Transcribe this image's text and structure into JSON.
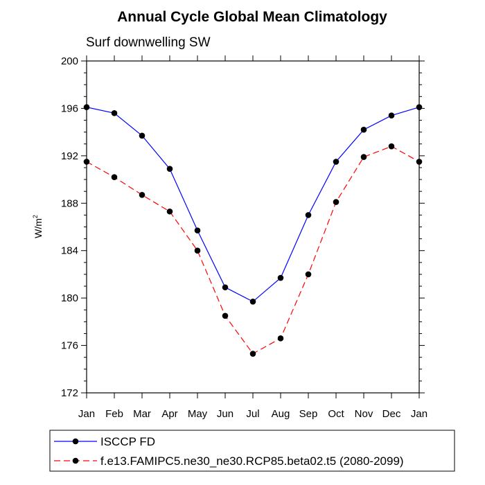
{
  "chart_data": {
    "type": "line",
    "title": "Annual Cycle Global Mean Climatology",
    "subtitle": "Surf downwelling SW",
    "ylabel_base": "W/m",
    "ylabel_sup": "2",
    "categories": [
      "Jan",
      "Feb",
      "Mar",
      "Apr",
      "May",
      "Jun",
      "Jul",
      "Aug",
      "Sep",
      "Oct",
      "Nov",
      "Dec",
      "Jan"
    ],
    "ylim": [
      172,
      200
    ],
    "yticks": [
      172,
      176,
      180,
      184,
      188,
      192,
      196,
      200
    ],
    "grid": false,
    "legend_position": "bottom",
    "series": [
      {
        "name": "ISCCP FD",
        "color": "#0000ff",
        "dash": "solid",
        "values": [
          196.1,
          195.6,
          193.7,
          190.9,
          185.7,
          180.9,
          179.7,
          181.7,
          187.0,
          191.5,
          194.2,
          195.4,
          196.1
        ]
      },
      {
        "name": "f.e13.FAMIPC5.ne30_ne30.RCP85.beta02.t5 (2080-2099)",
        "color": "#ff0000",
        "dash": "dashed",
        "values": [
          191.5,
          190.2,
          188.7,
          187.3,
          184.0,
          178.5,
          175.3,
          176.6,
          182.0,
          188.1,
          191.9,
          192.8,
          191.5
        ]
      }
    ]
  }
}
